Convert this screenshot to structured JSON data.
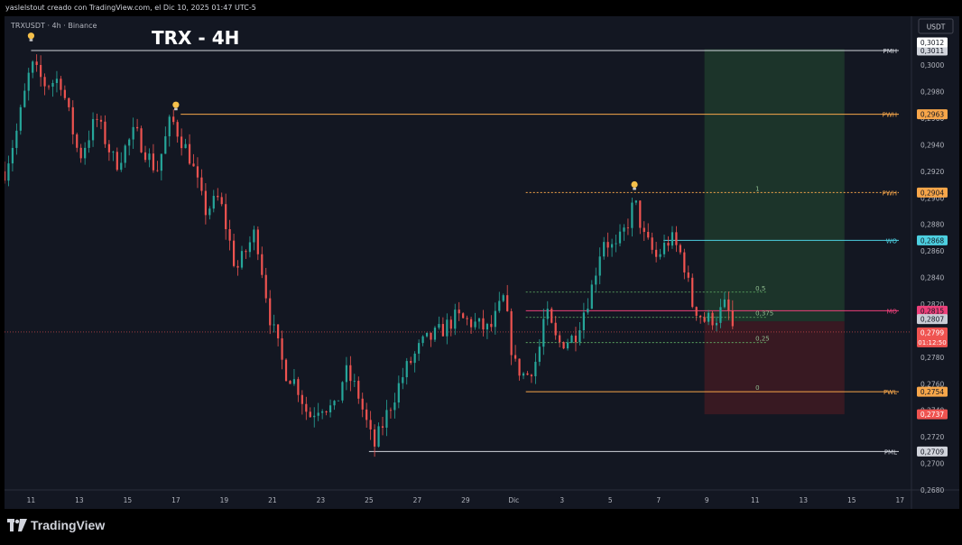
{
  "header": {
    "caption": "yaslelstout creado con TradingView.com, el Dic 10, 2025 01:47 UTC-5"
  },
  "symbol": {
    "label": "TRXUSDT · 4h · Binance"
  },
  "chart_title": "TRX - 4H",
  "currency_button": "USDT",
  "footer": {
    "brand": "TradingView"
  },
  "colors": {
    "up": "#26a69a",
    "down": "#ef5350",
    "bg": "#131722",
    "orange": "#f7a64a",
    "white": "#d1d4dc",
    "cyan": "#4dd0e1",
    "pink": "#ec407a",
    "green_zone": "#1e3a2c",
    "red_zone": "#3d1a22"
  },
  "chart_data": {
    "type": "candlestick",
    "symbol": "TRXUSDT",
    "timeframe": "4h",
    "exchange": "Binance",
    "ylim": [
      0.268,
      0.303
    ],
    "y_ticks": [
      "0,3000",
      "0,2980",
      "0,2960",
      "0,2940",
      "0,2920",
      "0,2900",
      "0,2880",
      "0,2860",
      "0,2840",
      "0,2820",
      "0,2800",
      "0,2780",
      "0,2760",
      "0,2740",
      "0,2720",
      "0,2700",
      "0,2680"
    ],
    "y_tick_values": [
      0.3,
      0.298,
      0.296,
      0.294,
      0.292,
      0.29,
      0.288,
      0.286,
      0.284,
      0.282,
      0.28,
      0.278,
      0.276,
      0.274,
      0.272,
      0.27,
      0.268
    ],
    "x_ticks": [
      {
        "label": "11",
        "day": 11
      },
      {
        "label": "13",
        "day": 13
      },
      {
        "label": "15",
        "day": 15
      },
      {
        "label": "17",
        "day": 17
      },
      {
        "label": "19",
        "day": 19
      },
      {
        "label": "21",
        "day": 21
      },
      {
        "label": "23",
        "day": 23
      },
      {
        "label": "25",
        "day": 25
      },
      {
        "label": "27",
        "day": 27
      },
      {
        "label": "29",
        "day": 29
      },
      {
        "label": "Dic",
        "day": 31
      },
      {
        "label": "3",
        "day": 33
      },
      {
        "label": "5",
        "day": 35
      },
      {
        "label": "7",
        "day": 37
      },
      {
        "label": "9",
        "day": 39
      },
      {
        "label": "11",
        "day": 41
      },
      {
        "label": "13",
        "day": 43
      },
      {
        "label": "15",
        "day": 45
      },
      {
        "label": "17",
        "day": 47
      }
    ],
    "x_range_days": [
      9.9,
      48.0
    ],
    "key_points": [
      {
        "d": 9.9,
        "p": 0.292
      },
      {
        "d": 10.4,
        "p": 0.295
      },
      {
        "d": 11.0,
        "p": 0.3
      },
      {
        "d": 11.6,
        "p": 0.2985
      },
      {
        "d": 12.2,
        "p": 0.299
      },
      {
        "d": 13.0,
        "p": 0.293
      },
      {
        "d": 13.7,
        "p": 0.296
      },
      {
        "d": 14.5,
        "p": 0.2925
      },
      {
        "d": 15.3,
        "p": 0.295
      },
      {
        "d": 16.2,
        "p": 0.292
      },
      {
        "d": 16.8,
        "p": 0.296
      },
      {
        "d": 17.6,
        "p": 0.293
      },
      {
        "d": 18.2,
        "p": 0.289
      },
      {
        "d": 18.8,
        "p": 0.29
      },
      {
        "d": 19.5,
        "p": 0.2845
      },
      {
        "d": 20.3,
        "p": 0.2875
      },
      {
        "d": 20.9,
        "p": 0.281
      },
      {
        "d": 21.5,
        "p": 0.277
      },
      {
        "d": 22.0,
        "p": 0.276
      },
      {
        "d": 22.5,
        "p": 0.2735
      },
      {
        "d": 23.0,
        "p": 0.2745
      },
      {
        "d": 23.6,
        "p": 0.274
      },
      {
        "d": 24.0,
        "p": 0.277
      },
      {
        "d": 24.5,
        "p": 0.2755
      },
      {
        "d": 25.2,
        "p": 0.2712
      },
      {
        "d": 25.8,
        "p": 0.274
      },
      {
        "d": 26.5,
        "p": 0.277
      },
      {
        "d": 27.2,
        "p": 0.279
      },
      {
        "d": 28.0,
        "p": 0.28
      },
      {
        "d": 28.6,
        "p": 0.281
      },
      {
        "d": 29.4,
        "p": 0.2805
      },
      {
        "d": 30.0,
        "p": 0.28
      },
      {
        "d": 30.6,
        "p": 0.2825
      },
      {
        "d": 31.0,
        "p": 0.2775
      },
      {
        "d": 31.5,
        "p": 0.2765
      },
      {
        "d": 32.0,
        "p": 0.278
      },
      {
        "d": 32.3,
        "p": 0.2815
      },
      {
        "d": 32.8,
        "p": 0.279
      },
      {
        "d": 33.5,
        "p": 0.2795
      },
      {
        "d": 34.2,
        "p": 0.283
      },
      {
        "d": 34.7,
        "p": 0.287
      },
      {
        "d": 35.2,
        "p": 0.286
      },
      {
        "d": 35.7,
        "p": 0.288
      },
      {
        "d": 36.0,
        "p": 0.2898
      },
      {
        "d": 36.4,
        "p": 0.287
      },
      {
        "d": 36.9,
        "p": 0.2855
      },
      {
        "d": 37.5,
        "p": 0.287
      },
      {
        "d": 38.0,
        "p": 0.2855
      },
      {
        "d": 38.4,
        "p": 0.282
      },
      {
        "d": 38.9,
        "p": 0.2808
      },
      {
        "d": 39.4,
        "p": 0.281
      },
      {
        "d": 39.8,
        "p": 0.282
      },
      {
        "d": 40.1,
        "p": 0.28
      }
    ],
    "levels": [
      {
        "name": "PMH",
        "value": 0.3011,
        "label": "PMH",
        "price_label": "0,3011",
        "color": "#d1d4dc",
        "style": "solid",
        "from_day": 11.0
      },
      {
        "name": "PWH",
        "value": 0.2963,
        "label": "PWH",
        "price_label": "0,2963",
        "color": "#f7a64a",
        "style": "solid",
        "from_day": 17.2
      },
      {
        "name": "PWH2",
        "value": 0.2904,
        "label": "PWH",
        "price_label": "0,2904",
        "color": "#f7a64a",
        "style": "dotted",
        "from_day": 31.5
      },
      {
        "name": "WO",
        "value": 0.2868,
        "label": "WO",
        "price_label": "0,2868",
        "color": "#4dd0e1",
        "style": "solid",
        "from_day": 37.2
      },
      {
        "name": "MO",
        "value": 0.2815,
        "label": "MO",
        "price_label": "0,2815",
        "color": "#ec407a",
        "style": "solid",
        "from_day": 31.5
      },
      {
        "name": "PWL",
        "value": 0.2754,
        "label": "PWL",
        "price_label": "0,2754",
        "color": "#f7a64a",
        "style": "solid",
        "from_day": 31.5
      },
      {
        "name": "PML",
        "value": 0.2709,
        "label": "PML",
        "price_label": "0,2709",
        "color": "#d1d4dc",
        "style": "solid",
        "from_day": 25.0
      }
    ],
    "fib": [
      {
        "label": "1",
        "value": 0.2904
      },
      {
        "label": "0,5",
        "value": 0.2829
      },
      {
        "label": "0,375",
        "value": 0.281
      },
      {
        "label": "0,25",
        "value": 0.2791
      },
      {
        "label": "0",
        "value": 0.2754
      }
    ],
    "fib_range_days": [
      31.5,
      41.5
    ],
    "position": {
      "from_day": 38.9,
      "to_day": 44.7,
      "entry": 0.2807,
      "target": 0.3012,
      "stop": 0.2737
    },
    "price_tags": [
      {
        "value": 0.3012,
        "label": "0,3012",
        "bg": "#ffffff",
        "fg": "#131722"
      },
      {
        "value": 0.2807,
        "label": "0,2807",
        "bg": "#c9cdd6",
        "fg": "#131722"
      },
      {
        "value": 0.2799,
        "label": "0,2799",
        "sub": "01:12:50",
        "bg": "#ef5350",
        "fg": "#ffffff"
      },
      {
        "value": 0.2737,
        "label": "0,2737",
        "bg": "#ef5350",
        "fg": "#ffffff"
      }
    ],
    "last_price": 0.2799,
    "markers": [
      {
        "type": "lightbulb",
        "day": 11.0,
        "value": 0.302
      },
      {
        "type": "lightbulb",
        "day": 17.0,
        "value": 0.2968
      },
      {
        "type": "lightbulb",
        "day": 36.0,
        "value": 0.2908
      }
    ]
  }
}
